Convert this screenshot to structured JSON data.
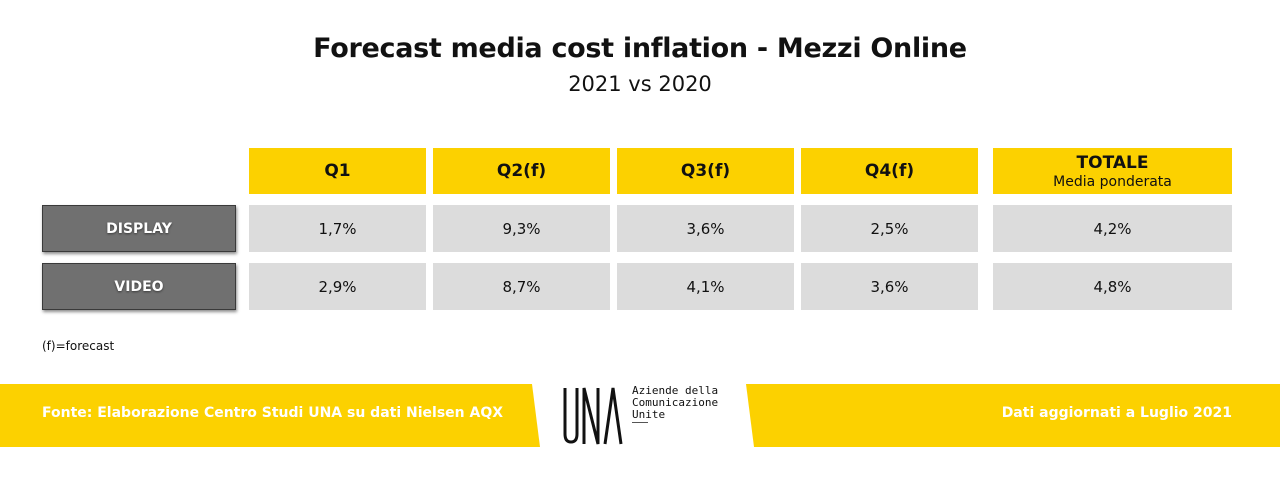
{
  "title": "Forecast media cost inflation - Mezzi Online",
  "subtitle": "2021 vs 2020",
  "chart_data": {
    "type": "table",
    "columns": [
      {
        "label": "Q1",
        "sub": ""
      },
      {
        "label": "Q2(f)",
        "sub": ""
      },
      {
        "label": "Q3(f)",
        "sub": ""
      },
      {
        "label": "Q4(f)",
        "sub": ""
      },
      {
        "label": "TOTALE",
        "sub": "Media ponderata"
      }
    ],
    "rows": [
      {
        "label": "DISPLAY",
        "values": [
          "1,7%",
          "9,3%",
          "3,6%",
          "2,5%",
          "4,2%"
        ]
      },
      {
        "label": "VIDEO",
        "values": [
          "2,9%",
          "8,7%",
          "4,1%",
          "3,6%",
          "4,8%"
        ]
      }
    ]
  },
  "note": "(f)=forecast",
  "footer": {
    "source": "Fonte: Elaborazione Centro Studi UNA su dati Nielsen AQX",
    "updated": "Dati aggiornati a Luglio 2021",
    "logo": {
      "mark": "UNA",
      "lines": [
        "Aziende della",
        "Comunicazione",
        "Unite"
      ]
    }
  },
  "colors": {
    "accent": "#fcd100",
    "row_label_bg": "#707070",
    "cell_bg": "#dcdcdc"
  }
}
